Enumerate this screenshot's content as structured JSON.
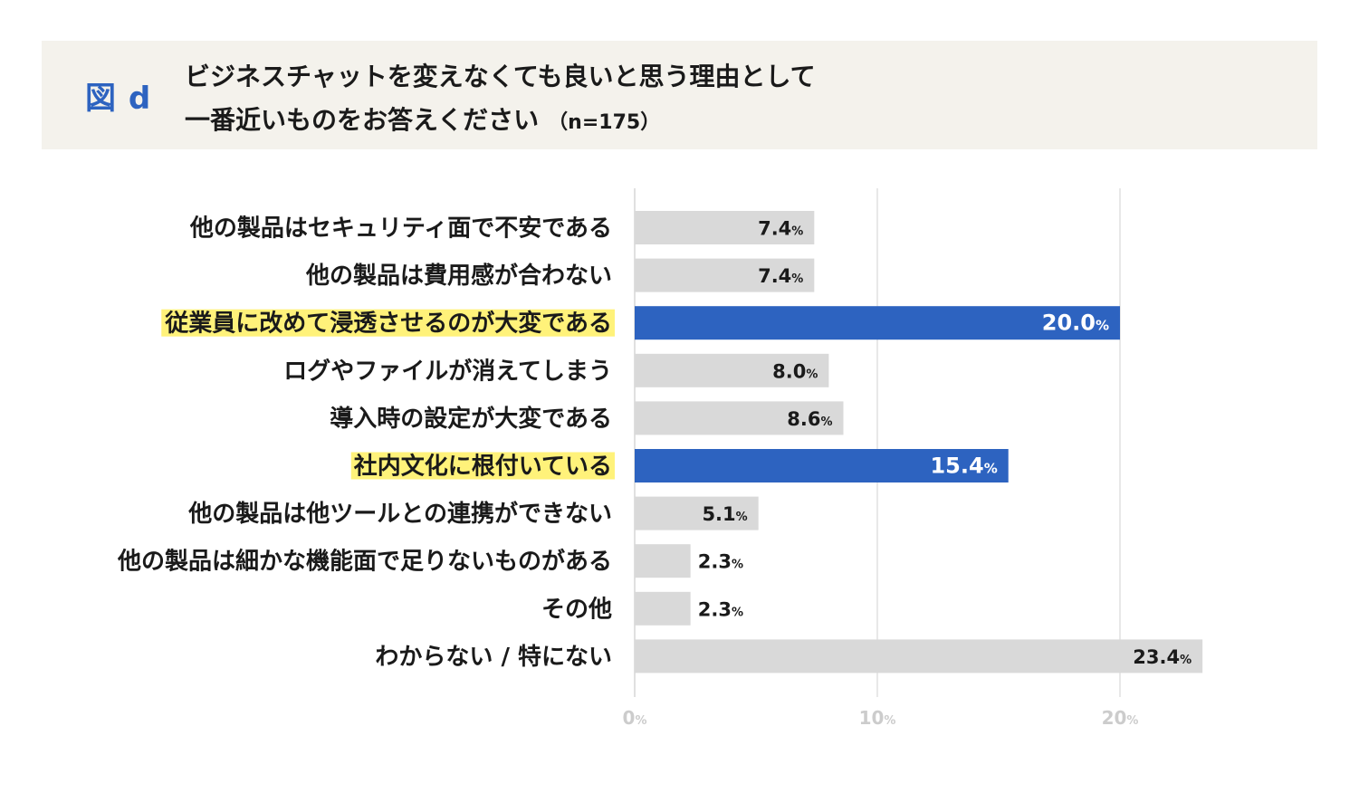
{
  "header": {
    "figure_label": "図 d",
    "title_line1": "ビジネスチャットを変えなくても良いと思う理由として",
    "title_line2": "一番近いものをお答えください",
    "sample_size": "（n=175）"
  },
  "colors": {
    "header_bg": "#f4f2ec",
    "accent": "#2d63c0",
    "bar_default": "#d9d9d9",
    "highlight": "#fff27a",
    "grid": "#e0e0e0",
    "tick_text": "#cccccc"
  },
  "chart_data": {
    "type": "bar",
    "orientation": "horizontal",
    "categories": [
      "他の製品はセキュリティ面で不安である",
      "他の製品は費用感が合わない",
      "従業員に改めて浸透させるのが大変である",
      "ログやファイルが消えてしまう",
      "導入時の設定が大変である",
      "社内文化に根付いている",
      "他の製品は他ツールとの連携ができない",
      "他の製品は細かな機能面で足りないものがある",
      "その他",
      "わからない / 特にない"
    ],
    "values": [
      7.4,
      7.4,
      20.0,
      8.0,
      8.6,
      15.4,
      5.1,
      2.3,
      2.3,
      23.4
    ],
    "value_labels": [
      "7.4",
      "7.4",
      "20.0",
      "8.0",
      "8.6",
      "15.4",
      "5.1",
      "2.3",
      "2.3",
      "23.4"
    ],
    "highlighted": [
      false,
      false,
      true,
      false,
      false,
      true,
      false,
      false,
      false,
      false
    ],
    "unit": "%",
    "xticks": [
      0,
      10,
      20
    ],
    "xtick_labels": [
      "0",
      "10",
      "20"
    ],
    "xlim": [
      0,
      25
    ],
    "grid": true,
    "title": "",
    "xlabel": "",
    "ylabel": ""
  }
}
